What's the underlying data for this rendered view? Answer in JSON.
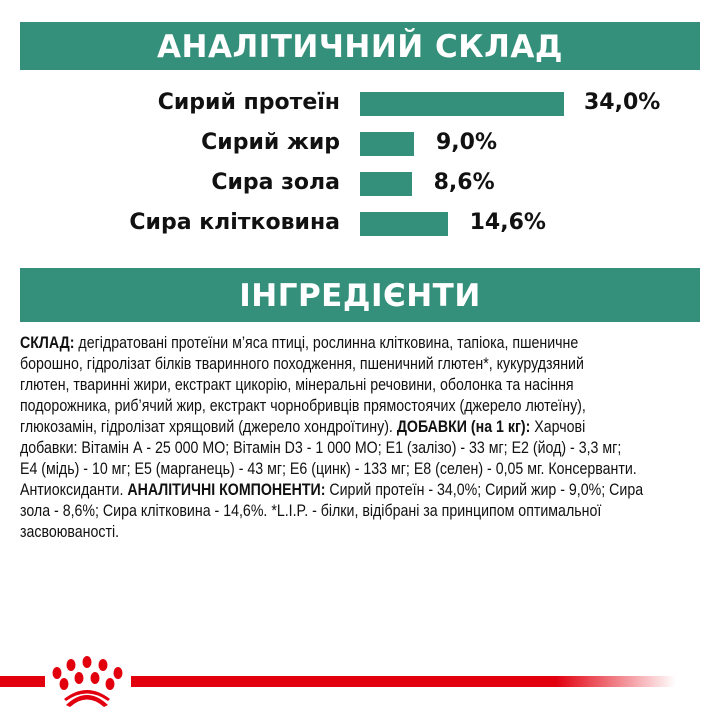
{
  "colors": {
    "accent": "#34907a",
    "brand_red": "#e2000f"
  },
  "analysis": {
    "title": "АНАЛІТИЧНИЙ СКЛАД",
    "items": [
      {
        "label": "Сирий протеїн",
        "value": 34.0,
        "display": "34,0%"
      },
      {
        "label": "Сирий жир",
        "value": 9.0,
        "display": "9,0%"
      },
      {
        "label": "Сира зола",
        "value": 8.6,
        "display": "8,6%"
      },
      {
        "label": "Сира клітковина",
        "value": 14.6,
        "display": "14,6%"
      }
    ]
  },
  "ingredients": {
    "title": "ІНГРЕДІЄНТИ",
    "lines": [
      [
        {
          "b": true,
          "t": "СКЛАД:"
        },
        {
          "b": false,
          "t": " дегідратовані протеїни м’яса птиці, рослинна клітковина, тапіока, пшеничне"
        }
      ],
      [
        {
          "b": false,
          "t": "борошно, гідролізат білків тваринного походження, пшеничний глютен*, кукурудзяний"
        }
      ],
      [
        {
          "b": false,
          "t": "глютен, тваринні жири, екстракт цикорію, мінеральні речовини, оболонка та насіння"
        }
      ],
      [
        {
          "b": false,
          "t": "подорожника, риб’ячий жир, екстракт чорнобривців прямостоячих (джерело лютеїну),"
        }
      ],
      [
        {
          "b": false,
          "t": "глюкозамін, гідролізат хрящовий (джерело хондроїтину). "
        },
        {
          "b": true,
          "t": "ДОБАВКИ (на 1 кг):"
        },
        {
          "b": false,
          "t": " Харчові"
        }
      ],
      [
        {
          "b": false,
          "t": "добавки: Вітамін А - 25 000 МО; Вітамін D3 - 1 000 МО; Е1 (залізо) - 33 мг; Е2 (йод) - 3,3 мг;"
        }
      ],
      [
        {
          "b": false,
          "t": "Е4 (мідь) - 10 мг; Е5 (марганець) - 43 мг; Е6 (цинк) - 133 мг; Е8 (селен) - 0,05 мг. Консерванти."
        }
      ],
      [
        {
          "b": false,
          "t": "Антиоксиданти. "
        },
        {
          "b": true,
          "t": "АНАЛІТИЧНІ КОМПОНЕНТИ:"
        },
        {
          "b": false,
          "t": " Сирий протеїн - 34,0%; Сирий жир - 9,0%; Сира"
        }
      ],
      [
        {
          "b": false,
          "t": "зола - 8,6%; Сира клітковина - 14,6%. *L.I.P. - білки, відібрані за принципом оптимальної"
        }
      ],
      [
        {
          "b": false,
          "t": "засвоюваності."
        }
      ]
    ]
  },
  "footer": {
    "logo_icon": "royal-canin-crown-icon"
  }
}
